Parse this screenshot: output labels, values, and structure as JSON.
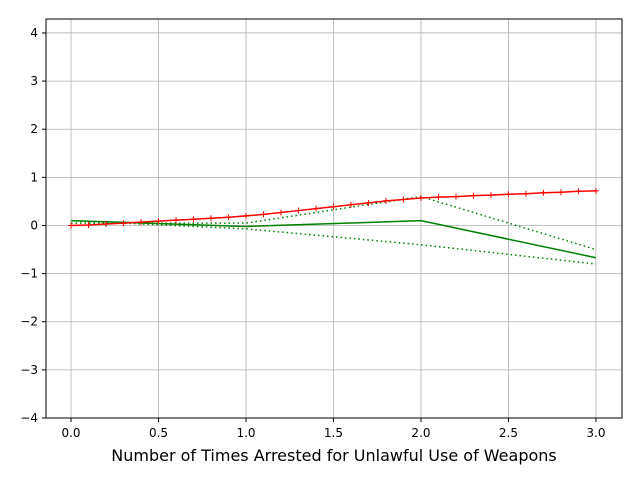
{
  "chart_data": {
    "type": "line",
    "xlabel": "Number of Times Arrested for Unlawful Use of Weapons",
    "xlim": [
      -0.143,
      3.149
    ],
    "ylim": [
      -4,
      4.29
    ],
    "xticks": [
      {
        "value": 0,
        "label": "0.0"
      },
      0.5,
      {
        "value": 1,
        "label": "1.0"
      },
      1.5,
      {
        "value": 2,
        "label": "2.0"
      },
      2.5,
      {
        "value": 3,
        "label": "3.0"
      }
    ],
    "yticks": [
      {
        "value": -4,
        "label": "−4"
      },
      {
        "value": -3,
        "label": "−3"
      },
      {
        "value": -2,
        "label": "−2"
      },
      {
        "value": -1,
        "label": "−1"
      },
      0,
      1,
      2,
      3,
      4
    ],
    "grid": true,
    "series": [
      {
        "color": "#008000",
        "style": "solid",
        "x": [
          0,
          1,
          2,
          3
        ],
        "values": [
          0.1,
          -0.02,
          0.1,
          -0.67
        ]
      },
      {
        "color": "#008000",
        "style": "dotted",
        "x": [
          0,
          1,
          2,
          3
        ],
        "values": [
          0.05,
          0.05,
          0.6,
          -0.5
        ]
      },
      {
        "color": "#008000",
        "style": "dotted",
        "x": [
          0,
          1,
          2,
          3
        ],
        "values": [
          0.1,
          -0.07,
          -0.4,
          -0.8
        ]
      },
      {
        "color": "#ff0000",
        "style": "solid",
        "marker": "+",
        "x": [
          0,
          0.1,
          0.2,
          0.3,
          0.4,
          0.5,
          0.6,
          0.7,
          0.8,
          0.9,
          1,
          1.1,
          1.2,
          1.3,
          1.4,
          1.5,
          1.6,
          1.7,
          1.8,
          1.9,
          2,
          2.1,
          2.2,
          2.3,
          2.4,
          2.5,
          2.6,
          2.7,
          2.8,
          2.9,
          3
        ],
        "values": [
          0,
          0.01,
          0.03,
          0.05,
          0.07,
          0.09,
          0.11,
          0.13,
          0.15,
          0.17,
          0.2,
          0.23,
          0.27,
          0.31,
          0.35,
          0.39,
          0.43,
          0.47,
          0.51,
          0.54,
          0.57,
          0.59,
          0.6,
          0.62,
          0.63,
          0.65,
          0.66,
          0.68,
          0.69,
          0.71,
          0.72
        ]
      }
    ]
  }
}
